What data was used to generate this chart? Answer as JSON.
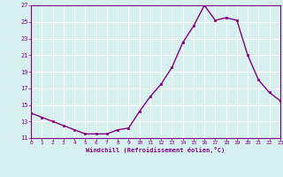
{
  "x": [
    0,
    1,
    2,
    3,
    4,
    5,
    6,
    7,
    8,
    9,
    10,
    11,
    12,
    13,
    14,
    15,
    16,
    17,
    18,
    19,
    20,
    21,
    22,
    23
  ],
  "y": [
    14.0,
    13.5,
    13.0,
    12.5,
    12.0,
    11.5,
    11.5,
    11.5,
    12.0,
    12.2,
    14.2,
    16.0,
    17.5,
    19.5,
    22.5,
    24.5,
    27.0,
    25.2,
    25.5,
    25.2,
    21.0,
    18.0,
    16.5,
    15.5
  ],
  "ylim": [
    11,
    27
  ],
  "yticks": [
    11,
    13,
    15,
    17,
    19,
    21,
    23,
    25,
    27
  ],
  "xlim": [
    0,
    23
  ],
  "xticks": [
    0,
    1,
    2,
    3,
    4,
    5,
    6,
    7,
    8,
    9,
    10,
    11,
    12,
    13,
    14,
    15,
    16,
    17,
    18,
    19,
    20,
    21,
    22,
    23
  ],
  "xlabel": "Windchill (Refroidissement éolien,°C)",
  "line_color": "#800080",
  "marker_color": "#800080",
  "bg_color": "#d6f0f0",
  "grid_color": "#ffffff",
  "tick_color": "#800080",
  "label_color": "#800080",
  "spine_color": "#800080"
}
